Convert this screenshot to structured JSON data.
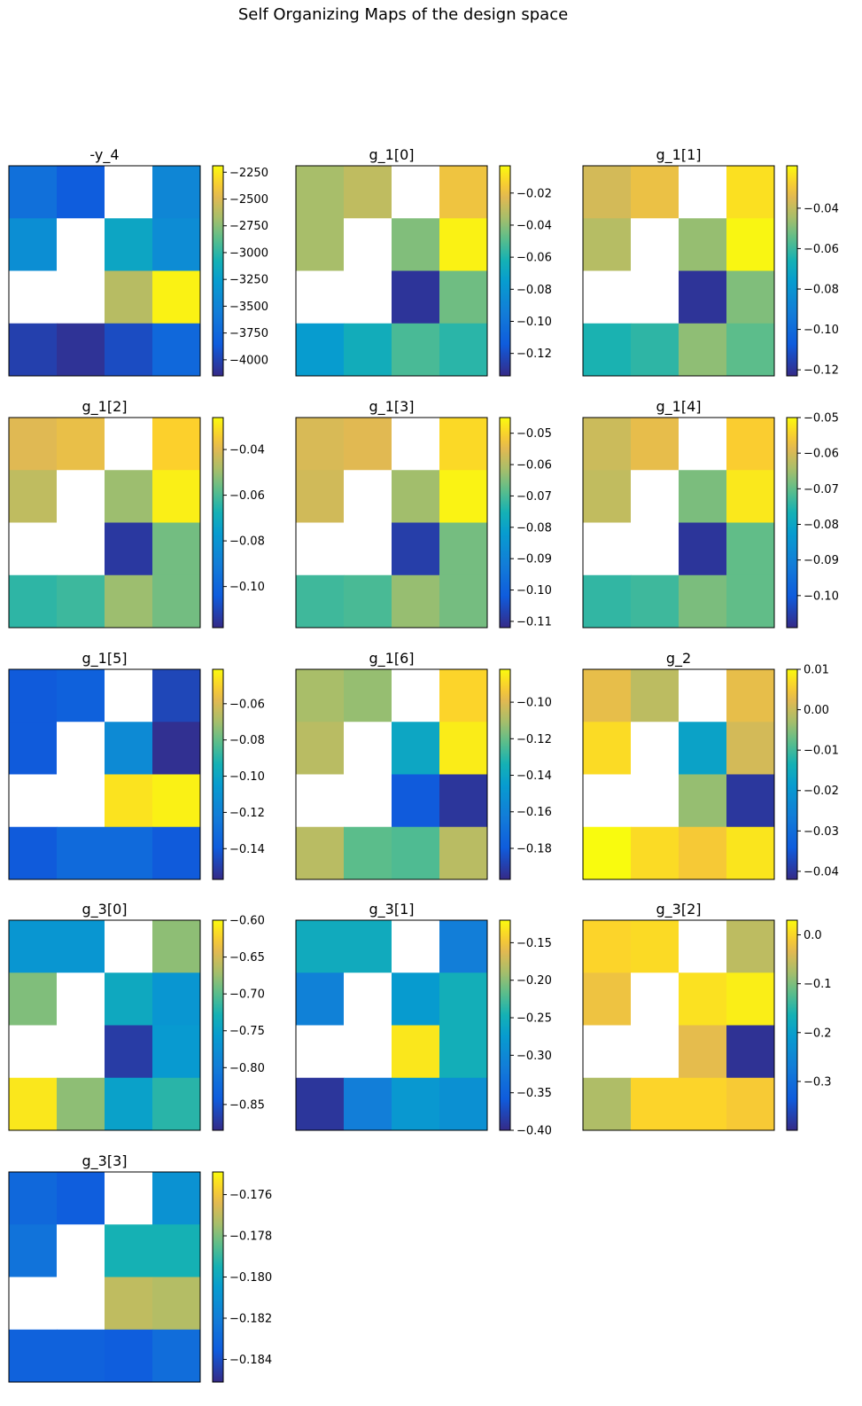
{
  "figure": {
    "title": "Self Organizing Maps of the design space"
  },
  "chart_data": [
    {
      "type": "heatmap",
      "title": "-y_4",
      "grid": [
        [
          -3680,
          -3850,
          null,
          -3480
        ],
        [
          -3400,
          null,
          -3180,
          -3420
        ],
        [
          null,
          null,
          -2620,
          -2220
        ],
        [
          -4020,
          -4100,
          -3950,
          -3750
        ]
      ],
      "colorbar": {
        "min": -4150,
        "max": -2190,
        "ticks": [
          -2250,
          -2500,
          -2750,
          -3000,
          -3250,
          -3500,
          -3750,
          -4000
        ],
        "tick_labels": [
          "−2250",
          "−2500",
          "−2750",
          "−3000",
          "−3250",
          "−3500",
          "−3750",
          "−4000"
        ]
      }
    },
    {
      "type": "heatmap",
      "title": "g_1[0]",
      "grid": [
        [
          -0.035,
          -0.03,
          null,
          -0.018
        ],
        [
          -0.035,
          null,
          -0.042,
          -0.005
        ],
        [
          null,
          null,
          -0.13,
          -0.045
        ],
        [
          -0.075,
          -0.065,
          -0.052,
          -0.058
        ]
      ],
      "colorbar": {
        "min": -0.134,
        "max": -0.003,
        "ticks": [
          -0.02,
          -0.04,
          -0.06,
          -0.08,
          -0.1,
          -0.12
        ],
        "tick_labels": [
          "−0.02",
          "−0.04",
          "−0.06",
          "−0.08",
          "−0.10",
          "−0.12"
        ]
      }
    },
    {
      "type": "heatmap",
      "title": "g_1[1]",
      "grid": [
        [
          -0.037,
          -0.032,
          null,
          -0.024
        ],
        [
          -0.042,
          null,
          -0.047,
          -0.02
        ],
        [
          null,
          null,
          -0.12,
          -0.05
        ],
        [
          -0.065,
          -0.062,
          -0.048,
          -0.055
        ]
      ],
      "colorbar": {
        "min": -0.123,
        "max": -0.019,
        "ticks": [
          -0.04,
          -0.06,
          -0.08,
          -0.1,
          -0.12
        ],
        "tick_labels": [
          "−0.04",
          "−0.06",
          "−0.08",
          "−0.10",
          "−0.12"
        ]
      }
    },
    {
      "type": "heatmap",
      "title": "g_1[2]",
      "grid": [
        [
          -0.04,
          -0.038,
          null,
          -0.033
        ],
        [
          -0.045,
          null,
          -0.05,
          -0.028
        ],
        [
          null,
          null,
          -0.114,
          -0.055
        ],
        [
          -0.064,
          -0.062,
          -0.05,
          -0.055
        ]
      ],
      "colorbar": {
        "min": -0.118,
        "max": -0.026,
        "ticks": [
          -0.04,
          -0.06,
          -0.08,
          -0.1
        ],
        "tick_labels": [
          "−0.04",
          "−0.06",
          "−0.08",
          "−0.10"
        ]
      }
    },
    {
      "type": "heatmap",
      "title": "g_1[3]",
      "grid": [
        [
          -0.056,
          -0.055,
          null,
          -0.049
        ],
        [
          -0.057,
          null,
          -0.062,
          -0.046
        ],
        [
          null,
          null,
          -0.108,
          -0.066
        ],
        [
          -0.071,
          -0.07,
          -0.063,
          -0.066
        ]
      ],
      "colorbar": {
        "min": -0.112,
        "max": -0.045,
        "ticks": [
          -0.05,
          -0.06,
          -0.07,
          -0.08,
          -0.09,
          -0.1,
          -0.11
        ],
        "tick_labels": [
          "−0.05",
          "−0.06",
          "−0.07",
          "−0.08",
          "−0.09",
          "−0.10",
          "−0.11"
        ]
      }
    },
    {
      "type": "heatmap",
      "title": "g_1[4]",
      "grid": [
        [
          -0.061,
          -0.058,
          null,
          -0.055
        ],
        [
          -0.062,
          null,
          -0.068,
          -0.052
        ],
        [
          null,
          null,
          -0.107,
          -0.07
        ],
        [
          -0.074,
          -0.073,
          -0.068,
          -0.07
        ]
      ],
      "colorbar": {
        "min": -0.109,
        "max": -0.05,
        "ticks": [
          -0.05,
          -0.06,
          -0.07,
          -0.08,
          -0.09,
          -0.1
        ],
        "tick_labels": [
          "−0.05",
          "−0.06",
          "−0.07",
          "−0.08",
          "−0.09",
          "−0.10"
        ]
      }
    },
    {
      "type": "heatmap",
      "title": "g_1[5]",
      "grid": [
        [
          -0.14,
          -0.137,
          null,
          -0.147
        ],
        [
          -0.14,
          null,
          -0.115,
          -0.155
        ],
        [
          null,
          null,
          -0.046,
          -0.043
        ],
        [
          -0.14,
          -0.132,
          -0.132,
          -0.14
        ]
      ],
      "colorbar": {
        "min": -0.157,
        "max": -0.041,
        "ticks": [
          -0.06,
          -0.08,
          -0.1,
          -0.12,
          -0.14
        ],
        "tick_labels": [
          "−0.06",
          "−0.08",
          "−0.10",
          "−0.12",
          "−0.14"
        ]
      }
    },
    {
      "type": "heatmap",
      "title": "g_1[6]",
      "grid": [
        [
          -0.11,
          -0.113,
          null,
          -0.09
        ],
        [
          -0.107,
          null,
          -0.14,
          -0.085
        ],
        [
          null,
          null,
          -0.18,
          -0.193
        ],
        [
          -0.107,
          -0.122,
          -0.124,
          -0.107
        ]
      ],
      "colorbar": {
        "min": -0.197,
        "max": -0.082,
        "ticks": [
          -0.1,
          -0.12,
          -0.14,
          -0.16,
          -0.18
        ],
        "tick_labels": [
          "−0.10",
          "−0.12",
          "−0.14",
          "−0.16",
          "−0.18"
        ]
      }
    },
    {
      "type": "heatmap",
      "title": "g_2",
      "grid": [
        [
          0.003,
          -0.001,
          null,
          0.003
        ],
        [
          0.007,
          null,
          -0.017,
          0.001
        ],
        [
          null,
          null,
          -0.004,
          -0.04
        ],
        [
          0.01,
          0.007,
          0.005,
          0.008
        ]
      ],
      "colorbar": {
        "min": -0.042,
        "max": 0.01,
        "ticks": [
          0.01,
          0.0,
          -0.01,
          -0.02,
          -0.03,
          -0.04
        ],
        "tick_labels": [
          "0.01",
          "0.00",
          "−0.01",
          "−0.02",
          "−0.03",
          "−0.04"
        ]
      }
    },
    {
      "type": "heatmap",
      "title": "g_3[0]",
      "grid": [
        [
          -0.765,
          -0.765,
          null,
          -0.68
        ],
        [
          -0.685,
          null,
          -0.74,
          -0.765
        ],
        [
          null,
          null,
          -0.87,
          -0.76
        ],
        [
          -0.61,
          -0.68,
          -0.75,
          -0.72
        ]
      ],
      "colorbar": {
        "min": -0.885,
        "max": -0.6,
        "ticks": [
          -0.6,
          -0.65,
          -0.7,
          -0.75,
          -0.8,
          -0.85
        ],
        "tick_labels": [
          "−0.60",
          "−0.65",
          "−0.70",
          "−0.75",
          "−0.80",
          "−0.85"
        ]
      }
    },
    {
      "type": "heatmap",
      "title": "g_3[1]",
      "grid": [
        [
          -0.255,
          -0.255,
          null,
          -0.315
        ],
        [
          -0.31,
          null,
          -0.275,
          -0.25
        ],
        [
          null,
          null,
          -0.13,
          -0.25
        ],
        [
          -0.39,
          -0.315,
          -0.28,
          -0.29
        ]
      ],
      "colorbar": {
        "min": -0.4,
        "max": -0.12,
        "ticks": [
          -0.15,
          -0.2,
          -0.25,
          -0.3,
          -0.35,
          -0.4
        ],
        "tick_labels": [
          "−0.15",
          "−0.20",
          "−0.25",
          "−0.30",
          "−0.35",
          "−0.40"
        ]
      }
    },
    {
      "type": "heatmap",
      "title": "g_3[2]",
      "grid": [
        [
          0.0,
          0.005,
          null,
          -0.06
        ],
        [
          -0.02,
          null,
          0.01,
          0.02
        ],
        [
          null,
          null,
          -0.03,
          -0.39
        ],
        [
          -0.07,
          0.0,
          0.0,
          -0.01
        ]
      ],
      "colorbar": {
        "min": -0.4,
        "max": 0.03,
        "ticks": [
          0.0,
          -0.1,
          -0.2,
          -0.3
        ],
        "tick_labels": [
          "0.0",
          "−0.1",
          "−0.2",
          "−0.3"
        ]
      }
    },
    {
      "type": "heatmap",
      "title": "g_3[3]",
      "grid": [
        [
          -0.183,
          -0.1835,
          null,
          -0.181
        ],
        [
          -0.1825,
          null,
          -0.1795,
          -0.1795
        ],
        [
          null,
          null,
          -0.177,
          -0.1772
        ],
        [
          -0.1833,
          -0.1833,
          -0.1835,
          -0.1828
        ]
      ],
      "colorbar": {
        "min": -0.1851,
        "max": -0.1749,
        "ticks": [
          -0.176,
          -0.178,
          -0.18,
          -0.182,
          -0.184
        ],
        "tick_labels": [
          "−0.176",
          "−0.178",
          "−0.180",
          "−0.182",
          "−0.184"
        ]
      }
    }
  ]
}
